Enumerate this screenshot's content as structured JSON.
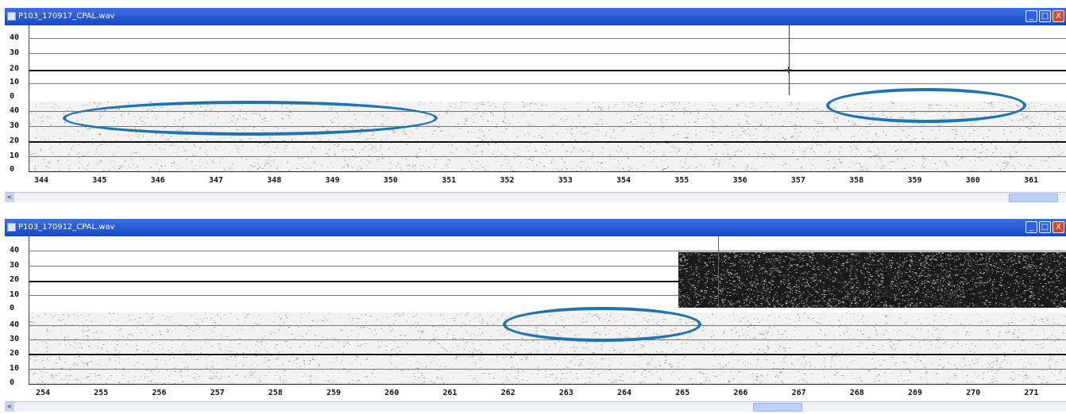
{
  "windows": [
    {
      "title": "P103_170917_CPAL.wav",
      "y_top_labels": [
        "40",
        "30",
        "20",
        "10",
        "0"
      ],
      "y_bottom_labels": [
        "40",
        "30",
        "20",
        "10",
        "0"
      ],
      "x_labels": [
        "344",
        "345",
        "346",
        "347",
        "348",
        "349",
        "350",
        "351",
        "352",
        "353",
        "354",
        "355",
        "356",
        "357",
        "358",
        "359",
        "360",
        "361"
      ],
      "buttons": {
        "min": "_",
        "max": "□",
        "close": "X"
      }
    },
    {
      "title": "P103_170912_CPAL.wav",
      "y_top_labels": [
        "40",
        "30",
        "20",
        "10",
        "0"
      ],
      "y_bottom_labels": [
        "40",
        "30",
        "20",
        "10",
        "0"
      ],
      "x_labels": [
        "254",
        "255",
        "256",
        "257",
        "258",
        "259",
        "260",
        "261",
        "262",
        "263",
        "264",
        "265",
        "266",
        "267",
        "268",
        "269",
        "270",
        "271"
      ],
      "buttons": {
        "min": "_",
        "max": "□",
        "close": "X"
      }
    }
  ],
  "scroll_arrow": "<",
  "colors": {
    "title_bar": "#1f56d6",
    "highlight": "#1e74b0",
    "close_button": "#d8472c"
  }
}
